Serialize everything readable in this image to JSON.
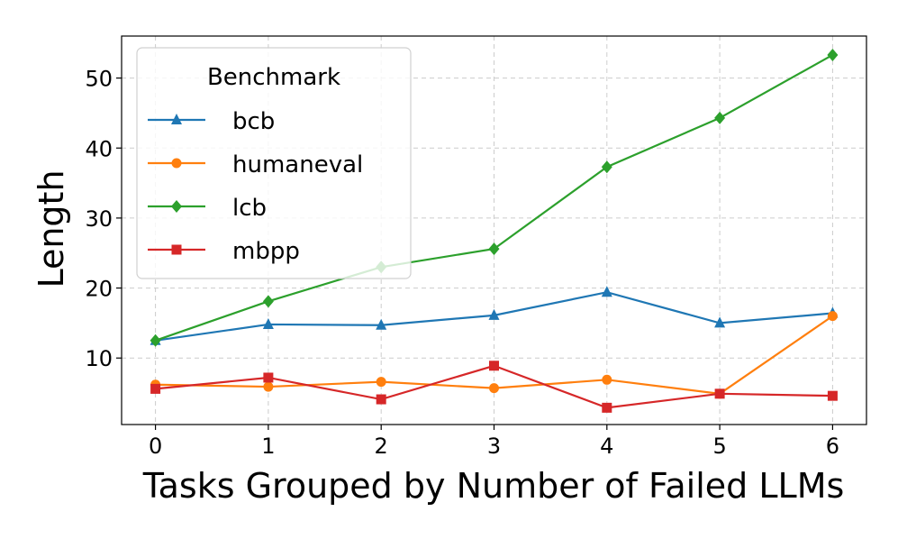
{
  "chart_data": {
    "type": "line",
    "xlabel": "Tasks Grouped by Number of Failed LLMs",
    "ylabel": "Length",
    "x": [
      0,
      1,
      2,
      3,
      4,
      5,
      6
    ],
    "xlim": [
      -0.3,
      6.3
    ],
    "ylim": [
      0.5,
      56
    ],
    "yticks": [
      10,
      20,
      30,
      40,
      50
    ],
    "xticks": [
      0,
      1,
      2,
      3,
      4,
      5,
      6
    ],
    "grid": true,
    "legend": {
      "title": "Benchmark",
      "position": "top-left"
    },
    "series": [
      {
        "name": "bcb",
        "color": "#1f77b4",
        "marker": "triangle",
        "values": [
          12.5,
          14.8,
          14.7,
          16.1,
          19.4,
          15.0,
          16.4
        ]
      },
      {
        "name": "humaneval",
        "color": "#ff7f0e",
        "marker": "circle",
        "values": [
          6.2,
          5.9,
          6.6,
          5.7,
          6.9,
          4.9,
          16.0
        ]
      },
      {
        "name": "lcb",
        "color": "#2ca02c",
        "marker": "diamond",
        "values": [
          12.5,
          18.1,
          23.0,
          25.6,
          37.3,
          44.3,
          53.3
        ]
      },
      {
        "name": "mbpp",
        "color": "#d62728",
        "marker": "square",
        "values": [
          5.6,
          7.2,
          4.1,
          8.9,
          2.9,
          4.9,
          4.6
        ]
      }
    ]
  }
}
